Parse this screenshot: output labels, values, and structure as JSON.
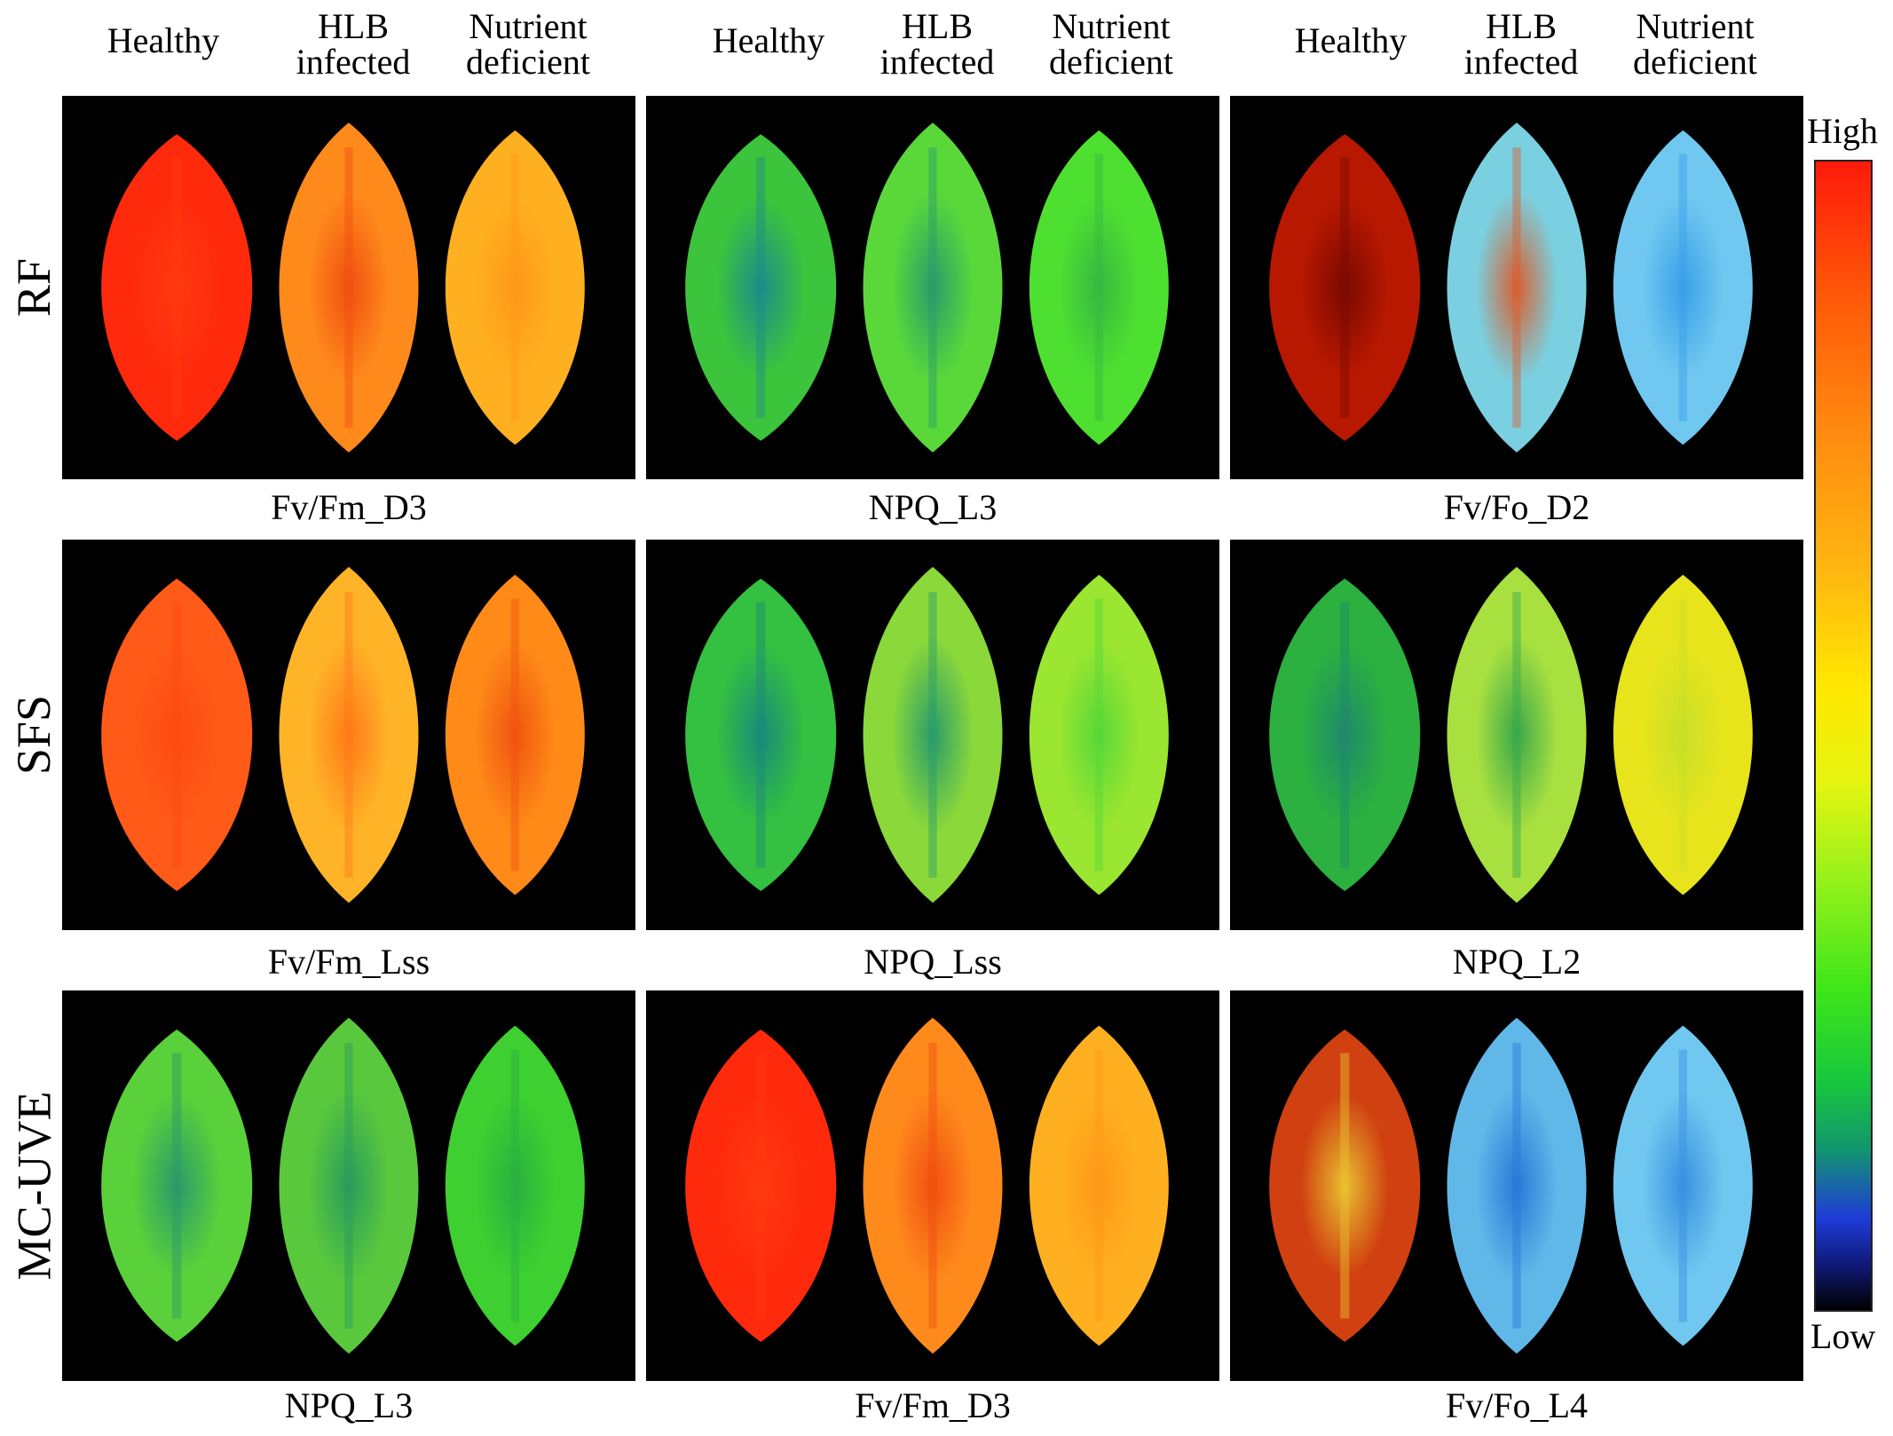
{
  "column_headers": [
    {
      "healthy": "Healthy",
      "hlb_1": "HLB",
      "hlb_2": "infected",
      "nutrient_1": "Nutrient",
      "nutrient_2": "deficient"
    },
    {
      "healthy": "Healthy",
      "hlb_1": "HLB",
      "hlb_2": "infected",
      "nutrient_1": "Nutrient",
      "nutrient_2": "deficient"
    },
    {
      "healthy": "Healthy",
      "hlb_1": "HLB",
      "hlb_2": "infected",
      "nutrient_1": "Nutrient",
      "nutrient_2": "deficient"
    }
  ],
  "rows": [
    {
      "label": "RF",
      "captions": [
        "Fv/Fm_D3",
        "NPQ_L3",
        "Fv/Fo_D2"
      ]
    },
    {
      "label": "SFS",
      "captions": [
        "Fv/Fm_Lss",
        "NPQ_Lss",
        "NPQ_L2"
      ]
    },
    {
      "label": "MC-UVE",
      "captions": [
        "NPQ_L3",
        "Fv/Fm_D3",
        "Fv/Fo_L4"
      ]
    }
  ],
  "panel_colors": [
    [
      [
        "#ff2a0c",
        "#ff3a10"
      ],
      [
        "#ff8a1c",
        "#f05010"
      ],
      [
        "#ffb020",
        "#ff9818"
      ]
    ],
    [
      [
        "#3cc43c",
        "#1e8c8a"
      ],
      [
        "#5ad83a",
        "#2a9c6a"
      ],
      [
        "#4ee030",
        "#38b840"
      ]
    ],
    [
      [
        "#b81800",
        "#7a0a00"
      ],
      [
        "#7ad0e0",
        "#d86030"
      ],
      [
        "#70c8f0",
        "#3aa0e8"
      ]
    ],
    [
      [
        "#ff5a18",
        "#ff4a10"
      ],
      [
        "#ffb428",
        "#ff7a18"
      ],
      [
        "#ff8a18",
        "#f05410"
      ]
    ],
    [
      [
        "#34c040",
        "#1a8a7a"
      ],
      [
        "#8ad83a",
        "#2a9c6a"
      ],
      [
        "#9ae630",
        "#58d838"
      ]
    ],
    [
      [
        "#2cb040",
        "#1e8a6a"
      ],
      [
        "#a8e040",
        "#3aa84a"
      ],
      [
        "#e8e41c",
        "#c8e028"
      ]
    ],
    [
      [
        "#5ad03a",
        "#2a9a6a"
      ],
      [
        "#5ac83c",
        "#2a9c5c"
      ],
      [
        "#3ed030",
        "#2ab040"
      ]
    ],
    [
      [
        "#ff2a0c",
        "#ff3a10"
      ],
      [
        "#ff8a1c",
        "#f05010"
      ],
      [
        "#ffb020",
        "#ff9818"
      ]
    ],
    [
      [
        "#d04010",
        "#e8c030"
      ],
      [
        "#60b8e8",
        "#2a78d8"
      ],
      [
        "#70c8f0",
        "#3a90e0"
      ]
    ]
  ],
  "colorbar": {
    "high_label": "High",
    "low_label": "Low"
  }
}
